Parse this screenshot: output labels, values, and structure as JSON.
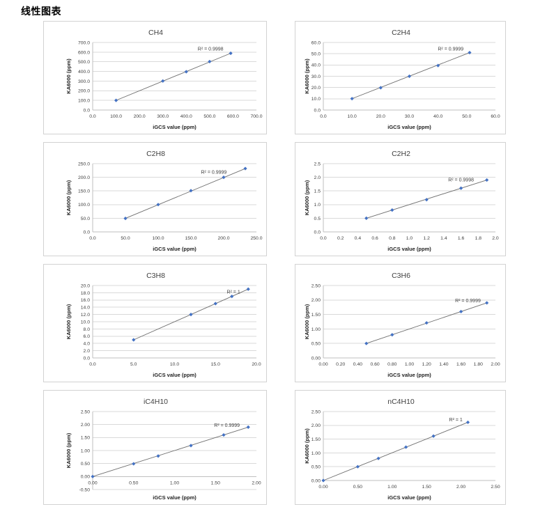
{
  "page": {
    "title": "线性图表"
  },
  "chart_style": {
    "marker_color": "#4472C4",
    "trendline_color": "#6e6e6e",
    "grid_color": "#d9d9d9",
    "axis_color": "#bfbfbf",
    "tick_color": "#404040",
    "title_color": "#3f3f3f",
    "axis_label_color": "#1f1f1f",
    "panel_border_color": "#d2d2d2"
  },
  "chart_common": {
    "xlabel": "iGCS value (ppm)",
    "ylabel": "KA6000 (ppm)",
    "grid": "horizontal",
    "legend": "none"
  },
  "chart_data": [
    {
      "type": "scatter",
      "title": "CH4",
      "r2_label": "R² = 0.9998",
      "x": [
        100,
        300,
        400,
        500,
        590
      ],
      "y": [
        100,
        301,
        397,
        502,
        588
      ],
      "xlim": [
        0,
        700
      ],
      "xstep": 100,
      "ylim": [
        0,
        700
      ],
      "ystep": 100,
      "tick_decimals": 1,
      "r2_pos": [
        0.72,
        0.9
      ],
      "xlabel": "iGCS value (ppm)",
      "ylabel": "KA6000 (ppm)"
    },
    {
      "type": "scatter",
      "title": "C2H4",
      "r2_label": "R² = 0.9999",
      "x": [
        10,
        20,
        30,
        40,
        51
      ],
      "y": [
        10.1,
        19.8,
        30,
        39.5,
        51
      ],
      "xlim": [
        0,
        60
      ],
      "xstep": 10,
      "ylim": [
        0,
        60
      ],
      "ystep": 10,
      "tick_decimals": 1,
      "r2_pos": [
        0.74,
        0.9
      ],
      "xlabel": "iGCS value (ppm)",
      "ylabel": "KA6000 (ppm)"
    },
    {
      "type": "scatter",
      "title": "C2H8",
      "r2_label": "R² = 0.9999",
      "x": [
        50,
        100,
        150,
        200,
        233
      ],
      "y": [
        49.5,
        100,
        151,
        200,
        232
      ],
      "xlim": [
        0,
        250
      ],
      "xstep": 50,
      "ylim": [
        0,
        250
      ],
      "ystep": 50,
      "tick_decimals": 1,
      "r2_pos": [
        0.74,
        0.87
      ],
      "xlabel": "iGCS value (ppm)",
      "ylabel": "KA6000 (ppm)"
    },
    {
      "type": "scatter",
      "title": "C2H2",
      "r2_label": "R² = 0.9998",
      "x": [
        0.5,
        0.8,
        1.2,
        1.6,
        1.9
      ],
      "y": [
        0.5,
        0.8,
        1.18,
        1.6,
        1.9
      ],
      "xlim": [
        0,
        2.0
      ],
      "xstep": 0.2,
      "ylim": [
        0,
        2.5
      ],
      "ystep": 0.5,
      "tick_decimals": 1,
      "r2_pos": [
        0.8,
        0.76
      ],
      "xlabel": "iGCS value (ppm)",
      "ylabel": "KA6000 (ppm)"
    },
    {
      "type": "scatter",
      "title": "C3H8",
      "r2_label": "R² = 1",
      "x": [
        5,
        12,
        15,
        17,
        19
      ],
      "y": [
        5,
        12,
        15,
        17,
        19
      ],
      "xlim": [
        0,
        20
      ],
      "xstep": 5,
      "ylim": [
        0,
        20
      ],
      "ystep": 2,
      "tick_decimals": 1,
      "r2_pos": [
        0.86,
        0.91
      ],
      "xlabel": "iGCS value (ppm)",
      "ylabel": "KA6000 (ppm)"
    },
    {
      "type": "scatter",
      "title": "C3H6",
      "r2_label": "R² = 0.9999",
      "x": [
        0.5,
        0.8,
        1.2,
        1.6,
        1.9
      ],
      "y": [
        0.5,
        0.8,
        1.21,
        1.6,
        1.9
      ],
      "xlim": [
        0,
        2.0
      ],
      "xstep": 0.2,
      "ylim": [
        0,
        2.5
      ],
      "ystep": 0.5,
      "tick_decimals": 2,
      "r2_pos": [
        0.84,
        0.79
      ],
      "xlabel": "iGCS value (ppm)",
      "ylabel": "KA6000 (ppm)"
    },
    {
      "type": "scatter",
      "title": "iC4H10",
      "r2_label": "R² = 0.9999",
      "x": [
        0,
        0.5,
        0.8,
        1.2,
        1.6,
        1.9
      ],
      "y": [
        0,
        0.49,
        0.79,
        1.19,
        1.6,
        1.9
      ],
      "xlim": [
        0,
        2.0
      ],
      "xstep": 0.5,
      "ylim": [
        -0.5,
        2.5
      ],
      "ystep": 0.5,
      "tick_decimals": 2,
      "r2_pos": [
        0.82,
        0.82
      ],
      "xlabel": "iGCS value (ppm)",
      "ylabel": "KA6000 (ppm)"
    },
    {
      "type": "scatter",
      "title": "nC4H10",
      "r2_label": "R² = 1",
      "x": [
        0,
        0.5,
        0.8,
        1.2,
        1.6,
        2.1
      ],
      "y": [
        0,
        0.5,
        0.8,
        1.21,
        1.61,
        2.11
      ],
      "xlim": [
        0,
        2.5
      ],
      "xstep": 0.5,
      "ylim": [
        0,
        2.5
      ],
      "ystep": 0.5,
      "tick_decimals": 2,
      "r2_pos": [
        0.77,
        0.88
      ],
      "xlabel": "iGCS value (ppm)",
      "ylabel": "KA6000 (ppm)"
    }
  ]
}
